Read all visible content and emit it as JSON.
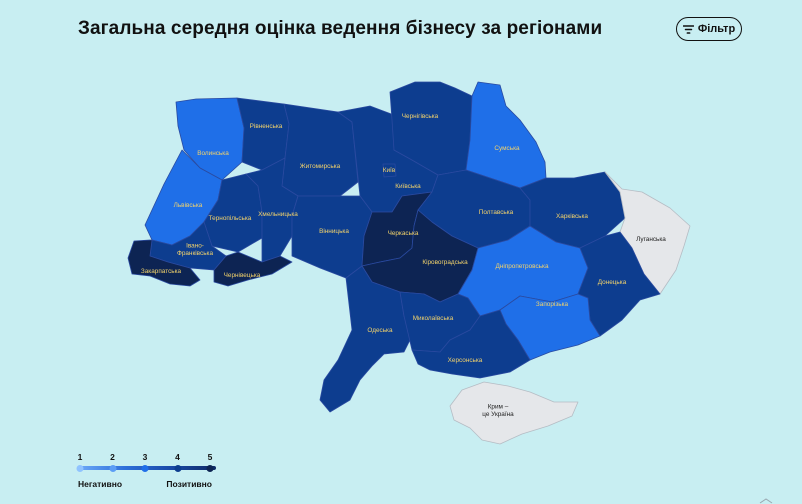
{
  "title": "Загальна середня оцінка ведення бізнесу за регіонами",
  "filter": {
    "label": "Фільтр",
    "icon": "filter-icon"
  },
  "colors": {
    "score_1": "#8fc3ff",
    "score_2": "#5c9ef5",
    "score_3": "#1f6fe8",
    "score_4": "#0d3d8f",
    "score_5": "#0d2453",
    "no_data": "#e5e7ea",
    "label_on_blue": "#f3d36b",
    "label_on_grey": "#222222"
  },
  "legend": {
    "ticks": [
      "1",
      "2",
      "3",
      "4",
      "5"
    ],
    "low_label": "Негативно",
    "high_label": "Позитивно"
  },
  "regions": [
    {
      "id": "volynska",
      "label": "Волинська",
      "score": 3
    },
    {
      "id": "rivnenska",
      "label": "Рівненська",
      "score": 4
    },
    {
      "id": "zhytomyrska",
      "label": "Житомирська",
      "score": 4
    },
    {
      "id": "kyivska",
      "label": "Київська",
      "score": 4
    },
    {
      "id": "kyiv",
      "label": "Київ",
      "score": 4
    },
    {
      "id": "chernihivska",
      "label": "Чернігівська",
      "score": 4
    },
    {
      "id": "sumska",
      "label": "Сумська",
      "score": 3
    },
    {
      "id": "lvivska",
      "label": "Львівська",
      "score": 3
    },
    {
      "id": "ternopilska",
      "label": "Тернопільська",
      "score": 4
    },
    {
      "id": "khmelnytska",
      "label": "Хмельницька",
      "score": 4
    },
    {
      "id": "vinnytska",
      "label": "Вінницька",
      "score": 4
    },
    {
      "id": "cherkaska",
      "label": "Черкаська",
      "score": 5
    },
    {
      "id": "poltavska",
      "label": "Полтавська",
      "score": 4
    },
    {
      "id": "kharkivska",
      "label": "Харківська",
      "score": 4
    },
    {
      "id": "luhanska",
      "label": "Луганська",
      "score": null
    },
    {
      "id": "ivano_frankivska",
      "label": "Івано-Франківська",
      "score": 4
    },
    {
      "id": "zakarpatska",
      "label": "Закарпатська",
      "score": 5
    },
    {
      "id": "chernivetska",
      "label": "Чернівецька",
      "score": 5
    },
    {
      "id": "kirovohradska",
      "label": "Кіровоградська",
      "score": 5
    },
    {
      "id": "dnipropetrovska",
      "label": "Дніпропетровська",
      "score": 3
    },
    {
      "id": "donetska",
      "label": "Донецька",
      "score": 4
    },
    {
      "id": "zaporizka",
      "label": "Запорізька",
      "score": 3
    },
    {
      "id": "odeska",
      "label": "Одеська",
      "score": 4
    },
    {
      "id": "mykolaivska",
      "label": "Миколаївська",
      "score": 4
    },
    {
      "id": "khersonska",
      "label": "Херсонська",
      "score": 4
    },
    {
      "id": "krym",
      "label": "Крим – це Україна",
      "score": null
    }
  ]
}
